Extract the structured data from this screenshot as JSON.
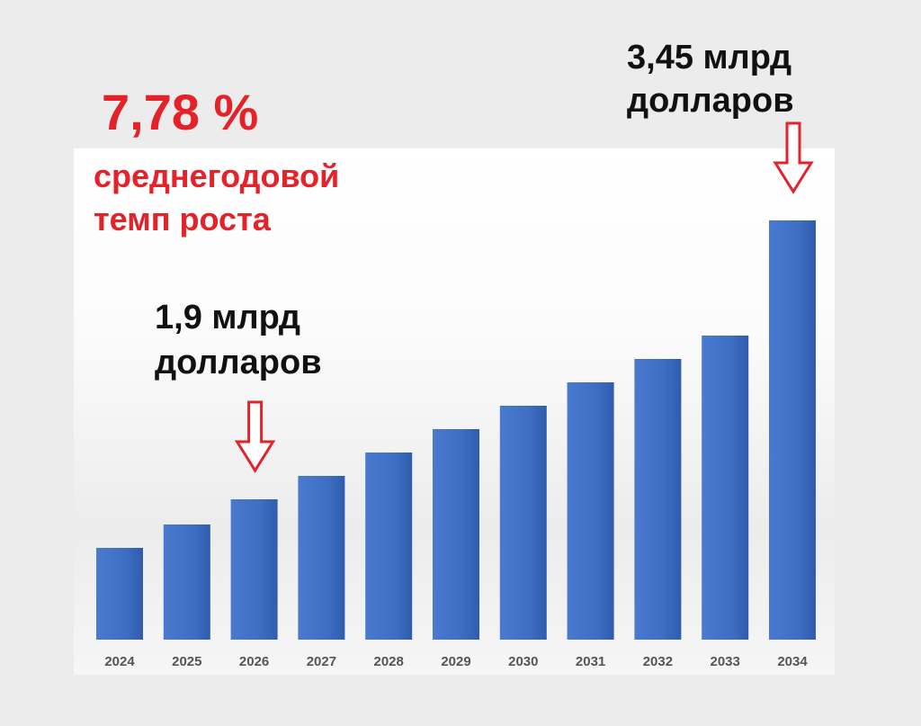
{
  "annotations": {
    "rate_value": "7,78 %",
    "rate_caption_line1": "среднегодовой",
    "rate_caption_line2": "темп роста",
    "value_2026_line1": "1,9 млрд",
    "value_2026_line2": "долларов",
    "value_2034_line1": "3,45 млрд",
    "value_2034_line2": "долларов"
  },
  "colors": {
    "bar": "#3f6fc4",
    "bar_dark": "#2f5cad",
    "accent_red": "#e3222a",
    "text_dark": "#111111",
    "tick_text": "#555555"
  },
  "chart_data": {
    "type": "bar",
    "categories": [
      "2024",
      "2025",
      "2026",
      "2027",
      "2028",
      "2029",
      "2030",
      "2031",
      "2032",
      "2033",
      "2034"
    ],
    "values": [
      1.63,
      1.76,
      1.9,
      2.03,
      2.16,
      2.29,
      2.42,
      2.55,
      2.68,
      2.81,
      3.45
    ],
    "title": "",
    "xlabel": "",
    "ylabel": "",
    "ylim": [
      1.12,
      3.62
    ],
    "grid": false,
    "legend": "none",
    "highlighted": [
      {
        "category": "2026",
        "label": "1,9 млрд долларов"
      },
      {
        "category": "2034",
        "label": "3,45 млрд долларов"
      }
    ]
  }
}
